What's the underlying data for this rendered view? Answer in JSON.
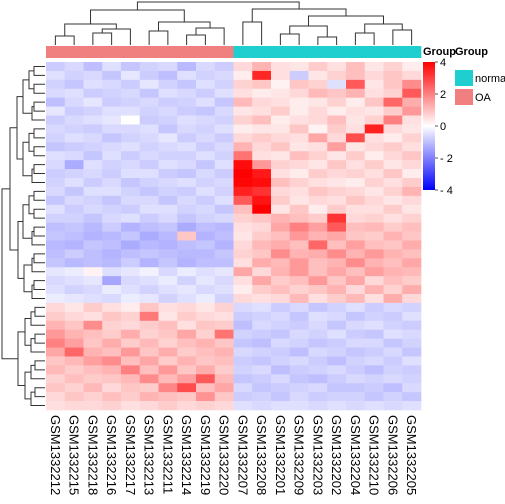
{
  "chart_data": {
    "type": "heatmap",
    "title": "",
    "xlabel": "",
    "ylabel": "",
    "columns": [
      "GSM1332212",
      "GSM1332215",
      "GSM1332218",
      "GSM1332216",
      "GSM1332217",
      "GSM1332213",
      "GSM1332211",
      "GSM1332214",
      "GSM1332219",
      "GSM1332220",
      "GSM1332207",
      "GSM1332208",
      "GSM1332201",
      "GSM1332209",
      "GSM1332203",
      "GSM1332202",
      "GSM1332204",
      "GSM1332210",
      "GSM1332206",
      "GSM1332205"
    ],
    "column_groups": [
      "OA",
      "OA",
      "OA",
      "OA",
      "OA",
      "OA",
      "OA",
      "OA",
      "OA",
      "OA",
      "normal",
      "normal",
      "normal",
      "normal",
      "normal",
      "normal",
      "normal",
      "normal",
      "normal",
      "normal"
    ],
    "annotation_title": "Group",
    "legend_group": {
      "title": "Group",
      "items": [
        {
          "label": "normal",
          "color": "#1fcfcf"
        },
        {
          "label": "OA",
          "color": "#f08080"
        }
      ]
    },
    "color_scale": {
      "min": -4,
      "max": 4,
      "ticks": [
        "4",
        "2",
        "0",
        "- 2",
        "- 4"
      ],
      "tick_values": [
        4,
        2,
        0,
        -2,
        -4
      ],
      "low_color": "#0000ff",
      "mid_color": "#ffffff",
      "high_color": "#ff0000"
    },
    "row_dendrogram": true,
    "col_dendrogram": true,
    "values": [
      [
        -0.8,
        -0.6,
        -1.0,
        -0.5,
        -0.9,
        -0.7,
        -0.6,
        -1.1,
        -0.6,
        -0.8,
        0.6,
        1.2,
        0.5,
        0.4,
        0.8,
        0.5,
        1.0,
        0.4,
        0.7,
        0.3
      ],
      [
        -0.5,
        -0.7,
        -0.6,
        -0.9,
        -0.4,
        -0.8,
        -1.0,
        -0.5,
        -0.7,
        -0.6,
        0.3,
        3.4,
        0.5,
        -0.8,
        0.4,
        0.7,
        1.0,
        0.6,
        0.9,
        0.6
      ],
      [
        -0.7,
        -0.9,
        -0.5,
        -0.6,
        -0.8,
        -0.4,
        -0.7,
        -0.9,
        -0.5,
        -0.7,
        0.7,
        0.9,
        0.2,
        0.9,
        0.7,
        -0.5,
        2.6,
        0.4,
        0.9,
        1.8
      ],
      [
        -0.6,
        -0.5,
        -0.8,
        -0.7,
        -0.6,
        -0.9,
        -0.5,
        -0.6,
        -0.8,
        -0.5,
        0.5,
        0.3,
        0.4,
        0.6,
        1.1,
        0.9,
        1.2,
        0.5,
        0.7,
        2.6
      ],
      [
        -1.0,
        -0.6,
        -0.4,
        -0.8,
        -0.7,
        -0.6,
        -0.8,
        -0.7,
        -0.5,
        -0.9,
        1.1,
        0.6,
        0.5,
        0.3,
        0.4,
        0.7,
        0.3,
        0.9,
        2.4,
        1.3
      ],
      [
        -0.4,
        -0.8,
        -0.7,
        -0.5,
        -0.5,
        -0.7,
        -0.6,
        -0.8,
        -0.9,
        -0.6,
        0.4,
        0.5,
        0.8,
        0.3,
        0.6,
        0.3,
        0.5,
        0.4,
        0.8,
        1.6
      ],
      [
        -0.8,
        -0.6,
        -0.5,
        -0.4,
        0.0,
        -0.8,
        -0.7,
        -0.5,
        -0.6,
        -0.7,
        0.7,
        1.0,
        0.3,
        0.5,
        0.6,
        1.0,
        0.4,
        0.7,
        2.0,
        0.5
      ],
      [
        -0.6,
        -0.7,
        -0.8,
        -0.6,
        -0.6,
        -0.5,
        -0.9,
        -0.6,
        -0.7,
        -0.5,
        0.3,
        0.4,
        0.4,
        0.9,
        0.2,
        0.8,
        0.5,
        3.5,
        0.6,
        0.4
      ],
      [
        -0.7,
        -0.5,
        -0.6,
        -0.9,
        -0.7,
        -0.6,
        -0.4,
        -0.8,
        -0.6,
        -0.8,
        0.6,
        0.8,
        0.6,
        0.5,
        1.4,
        0.6,
        2.8,
        0.5,
        0.3,
        0.7
      ],
      [
        -0.9,
        -0.8,
        -0.7,
        -0.6,
        -0.5,
        -0.7,
        -0.6,
        -0.5,
        -0.8,
        -0.6,
        1.2,
        0.6,
        0.9,
        0.4,
        0.5,
        1.5,
        0.4,
        0.6,
        0.8,
        0.5
      ],
      [
        -0.5,
        -0.6,
        -0.9,
        -0.5,
        -0.8,
        -0.6,
        -0.7,
        -0.7,
        -0.5,
        -0.7,
        2.2,
        0.5,
        0.4,
        1.0,
        0.7,
        0.4,
        0.8,
        0.3,
        0.6,
        0.9
      ],
      [
        -0.6,
        -1.3,
        -0.5,
        -0.7,
        -0.6,
        -0.8,
        -0.5,
        -0.6,
        -0.9,
        -0.5,
        3.8,
        1.6,
        0.7,
        0.6,
        0.4,
        0.9,
        0.5,
        0.8,
        0.4,
        0.6
      ],
      [
        -0.8,
        -0.7,
        -0.6,
        -0.8,
        -0.5,
        -0.5,
        -0.8,
        -0.9,
        -0.6,
        -0.8,
        4.0,
        3.6,
        0.5,
        0.3,
        0.8,
        0.6,
        0.7,
        0.5,
        0.9,
        0.3
      ],
      [
        -0.7,
        -0.5,
        -0.8,
        -0.6,
        -0.9,
        -0.7,
        -0.6,
        -0.5,
        -0.7,
        -0.6,
        3.9,
        3.8,
        1.0,
        0.7,
        0.5,
        0.4,
        0.3,
        0.7,
        0.5,
        0.8
      ],
      [
        -0.6,
        -0.9,
        -0.5,
        -0.5,
        -0.7,
        -0.9,
        -0.7,
        -0.8,
        -0.5,
        -0.7,
        3.5,
        3.2,
        0.6,
        0.5,
        0.9,
        0.7,
        0.6,
        0.4,
        0.7,
        1.2
      ],
      [
        -0.9,
        -0.6,
        -0.7,
        -0.9,
        -0.6,
        -0.6,
        -0.9,
        -0.6,
        -0.8,
        -0.5,
        2.6,
        3.7,
        0.8,
        0.4,
        0.6,
        0.5,
        0.9,
        0.6,
        0.4,
        0.6
      ],
      [
        -0.5,
        -0.8,
        -0.6,
        -0.7,
        -0.8,
        -0.5,
        -0.5,
        -0.7,
        -0.6,
        -0.9,
        1.0,
        4.0,
        0.4,
        0.9,
        0.3,
        0.8,
        0.5,
        0.5,
        0.8,
        0.4
      ],
      [
        -0.7,
        -0.7,
        -0.9,
        -0.6,
        -0.5,
        -0.8,
        -0.6,
        -0.9,
        -0.7,
        -0.6,
        0.7,
        0.9,
        1.2,
        1.0,
        0.8,
        3.2,
        0.6,
        0.7,
        0.5,
        0.7
      ],
      [
        -1.0,
        -0.9,
        -1.1,
        -0.8,
        -1.2,
        -1.0,
        -0.9,
        -1.3,
        -1.0,
        -1.1,
        0.5,
        0.6,
        1.4,
        2.0,
        1.5,
        2.6,
        1.0,
        1.1,
        0.8,
        1.0
      ],
      [
        -0.9,
        -1.0,
        -1.2,
        -1.1,
        -0.9,
        -1.3,
        -1.1,
        0.9,
        -1.2,
        -1.0,
        0.4,
        0.8,
        1.0,
        1.6,
        1.2,
        1.4,
        0.9,
        0.8,
        1.2,
        0.9
      ],
      [
        -1.1,
        -1.2,
        -0.9,
        -1.0,
        -1.3,
        -1.1,
        -1.2,
        -1.0,
        -0.9,
        -1.2,
        0.6,
        1.1,
        1.3,
        1.0,
        2.4,
        1.0,
        1.5,
        1.0,
        0.9,
        1.3
      ],
      [
        -1.0,
        -0.8,
        -1.0,
        -1.2,
        -1.0,
        -0.9,
        -1.0,
        -1.1,
        -1.1,
        -0.9,
        0.7,
        0.9,
        1.8,
        1.2,
        1.3,
        1.8,
        1.2,
        1.6,
        1.2,
        1.0
      ],
      [
        -0.9,
        -1.1,
        -1.0,
        -1.1,
        -0.8,
        -1.2,
        -0.9,
        -1.2,
        -1.0,
        -1.0,
        0.5,
        1.3,
        1.1,
        1.6,
        1.0,
        1.2,
        1.8,
        1.2,
        1.0,
        1.4
      ],
      [
        -0.4,
        -0.3,
        0.2,
        -0.5,
        -0.4,
        -0.2,
        -0.6,
        -0.3,
        -0.5,
        -0.4,
        1.4,
        0.6,
        1.2,
        1.6,
        1.0,
        1.4,
        1.0,
        1.5,
        1.2,
        1.1
      ],
      [
        -0.6,
        -0.5,
        -0.4,
        -1.4,
        -0.6,
        -0.5,
        -0.3,
        -0.7,
        -0.4,
        -0.6,
        0.5,
        1.4,
        0.8,
        1.0,
        1.6,
        0.9,
        1.4,
        0.6,
        1.0,
        0.8
      ],
      [
        -0.5,
        -0.7,
        -0.6,
        -0.3,
        -0.5,
        -0.7,
        -0.5,
        -0.4,
        -0.6,
        -0.5,
        0.3,
        0.8,
        1.0,
        0.7,
        0.9,
        1.2,
        0.6,
        1.2,
        0.7,
        1.3
      ],
      [
        -0.3,
        -0.4,
        -0.5,
        -0.6,
        -0.3,
        -0.4,
        -0.7,
        -0.5,
        -0.3,
        -0.7,
        0.6,
        0.5,
        0.6,
        1.1,
        0.5,
        0.8,
        1.1,
        0.5,
        1.3,
        0.6
      ],
      [
        0.6,
        0.4,
        0.8,
        0.5,
        0.3,
        0.9,
        0.5,
        0.6,
        0.4,
        0.7,
        -0.6,
        -0.5,
        -0.8,
        -0.6,
        -0.9,
        -0.7,
        -0.5,
        -0.8,
        -0.6,
        -0.7
      ],
      [
        0.8,
        0.6,
        0.5,
        0.9,
        0.7,
        2.1,
        0.4,
        0.8,
        0.6,
        0.5,
        -0.8,
        -0.7,
        -0.6,
        -0.9,
        -0.5,
        -0.6,
        -0.9,
        -0.7,
        -0.8,
        -0.5
      ],
      [
        1.2,
        0.9,
        1.8,
        0.7,
        0.6,
        0.8,
        1.0,
        0.5,
        0.9,
        0.8,
        -1.0,
        -0.6,
        -0.7,
        -0.8,
        -0.6,
        -0.9,
        -0.6,
        -0.5,
        -0.7,
        -0.8
      ],
      [
        1.6,
        1.2,
        1.0,
        0.8,
        1.3,
        0.7,
        0.9,
        1.4,
        0.7,
        2.2,
        -0.7,
        -0.8,
        -0.9,
        -0.6,
        -0.7,
        -0.5,
        -0.8,
        -0.9,
        -0.5,
        -0.6
      ],
      [
        2.0,
        1.5,
        0.9,
        1.3,
        0.8,
        1.1,
        0.7,
        1.0,
        1.2,
        0.9,
        -0.9,
        -1.0,
        -0.6,
        -0.7,
        -0.9,
        -0.8,
        -0.6,
        -0.6,
        -0.9,
        -0.7
      ],
      [
        1.4,
        2.4,
        1.2,
        1.0,
        1.6,
        0.9,
        1.3,
        0.8,
        1.0,
        1.2,
        -0.6,
        -0.7,
        -0.8,
        -1.0,
        -0.6,
        -0.7,
        -0.9,
        -0.8,
        -0.6,
        -0.9
      ],
      [
        0.9,
        1.1,
        1.5,
        1.8,
        1.0,
        1.4,
        0.8,
        1.2,
        0.9,
        1.0,
        -0.8,
        -0.9,
        -0.7,
        -0.6,
        -0.8,
        -1.0,
        -0.7,
        -0.6,
        -0.8,
        -0.5
      ],
      [
        1.1,
        0.8,
        1.0,
        1.2,
        2.0,
        1.0,
        1.6,
        0.9,
        1.3,
        0.8,
        -0.7,
        -0.6,
        -1.0,
        -0.8,
        -0.7,
        -0.6,
        -0.8,
        -1.0,
        -0.7,
        -0.8
      ],
      [
        0.7,
        1.0,
        0.8,
        0.9,
        1.1,
        1.8,
        1.1,
        1.5,
        2.6,
        1.1,
        -0.9,
        -0.8,
        -0.6,
        -0.9,
        -1.0,
        -0.8,
        -0.6,
        -0.7,
        -0.6,
        -0.7
      ],
      [
        0.9,
        0.7,
        1.1,
        0.6,
        0.9,
        0.8,
        1.9,
        2.8,
        1.0,
        1.4,
        -0.6,
        -0.9,
        -0.8,
        -0.7,
        -0.6,
        -0.9,
        -0.9,
        -0.8,
        -1.0,
        -0.6
      ],
      [
        0.6,
        0.9,
        0.7,
        1.0,
        0.8,
        1.2,
        1.0,
        0.9,
        1.7,
        0.9,
        -0.8,
        -0.7,
        -0.9,
        -0.6,
        -0.8,
        -0.7,
        -0.7,
        -0.9,
        -0.7,
        -0.9
      ],
      [
        0.5,
        0.6,
        0.6,
        0.7,
        0.5,
        0.6,
        0.8,
        0.6,
        0.7,
        0.6,
        -0.5,
        -0.6,
        -0.5,
        -0.5,
        -0.6,
        -0.5,
        -0.6,
        -0.5,
        -0.6,
        -0.5
      ]
    ]
  }
}
